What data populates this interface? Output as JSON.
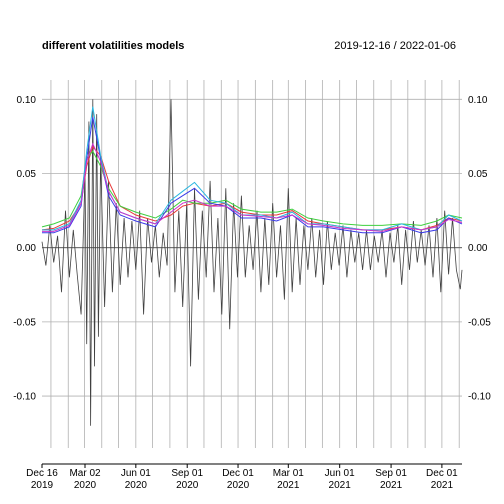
{
  "chart_data": {
    "type": "line",
    "title": "different volatilities models",
    "date_range": "2019-12-16 / 2022-01-06",
    "x_start": "2019-12-16",
    "x_end": "2022-01-06",
    "ylim": [
      -0.135,
      0.113
    ],
    "y_ticks": [
      0.1,
      0.05,
      0.0,
      -0.05,
      -0.1
    ],
    "y_tick_labels": [
      "0.10",
      "0.05",
      "0.00",
      "-0.05",
      "-0.10"
    ],
    "x_ticks": [
      {
        "date": "2019-12-16",
        "label": "Dec 16",
        "year": "2019"
      },
      {
        "date": "2020-03-02",
        "label": "Mar 02",
        "year": "2020"
      },
      {
        "date": "2020-06-01",
        "label": "Jun 01",
        "year": "2020"
      },
      {
        "date": "2020-09-01",
        "label": "Sep 01",
        "year": "2020"
      },
      {
        "date": "2020-12-01",
        "label": "Dec 01",
        "year": "2020"
      },
      {
        "date": "2021-03-01",
        "label": "Mar 01",
        "year": "2021"
      },
      {
        "date": "2021-06-01",
        "label": "Jun 01",
        "year": "2021"
      },
      {
        "date": "2021-09-01",
        "label": "Sep 01",
        "year": "2021"
      },
      {
        "date": "2021-12-01",
        "label": "Dec 01",
        "year": "2021"
      }
    ],
    "grid": true,
    "colors": {
      "returns": "#404040",
      "vol_black": "#000000",
      "vol_red": "#e8393a",
      "vol_green": "#3fcf3f",
      "vol_blue": "#3b3be8",
      "vol_cyan": "#29b6e0",
      "vol_magenta": "#cc33cc"
    },
    "returns": [
      [
        "2019-12-16",
        0.004
      ],
      [
        "2019-12-23",
        -0.012
      ],
      [
        "2019-12-30",
        0.015
      ],
      [
        "2020-01-06",
        -0.01
      ],
      [
        "2020-01-13",
        0.008
      ],
      [
        "2020-01-20",
        -0.03
      ],
      [
        "2020-01-27",
        0.025
      ],
      [
        "2020-02-03",
        -0.02
      ],
      [
        "2020-02-10",
        0.012
      ],
      [
        "2020-02-17",
        -0.018
      ],
      [
        "2020-02-24",
        -0.045
      ],
      [
        "2020-03-02",
        0.05
      ],
      [
        "2020-03-05",
        -0.065
      ],
      [
        "2020-03-09",
        0.085
      ],
      [
        "2020-03-12",
        -0.12
      ],
      [
        "2020-03-16",
        0.1
      ],
      [
        "2020-03-19",
        -0.08
      ],
      [
        "2020-03-23",
        0.09
      ],
      [
        "2020-03-26",
        -0.06
      ],
      [
        "2020-03-30",
        0.06
      ],
      [
        "2020-04-06",
        -0.04
      ],
      [
        "2020-04-13",
        0.045
      ],
      [
        "2020-04-20",
        -0.03
      ],
      [
        "2020-04-27",
        0.03
      ],
      [
        "2020-05-04",
        -0.025
      ],
      [
        "2020-05-11",
        0.02
      ],
      [
        "2020-05-18",
        -0.02
      ],
      [
        "2020-05-25",
        0.018
      ],
      [
        "2020-06-01",
        -0.015
      ],
      [
        "2020-06-08",
        0.025
      ],
      [
        "2020-06-15",
        -0.045
      ],
      [
        "2020-06-22",
        0.02
      ],
      [
        "2020-06-29",
        -0.01
      ],
      [
        "2020-07-06",
        0.015
      ],
      [
        "2020-07-13",
        -0.02
      ],
      [
        "2020-07-20",
        0.01
      ],
      [
        "2020-07-27",
        -0.012
      ],
      [
        "2020-08-03",
        0.1
      ],
      [
        "2020-08-10",
        -0.03
      ],
      [
        "2020-08-17",
        0.025
      ],
      [
        "2020-08-24",
        -0.04
      ],
      [
        "2020-08-31",
        0.03
      ],
      [
        "2020-09-07",
        -0.08
      ],
      [
        "2020-09-14",
        0.04
      ],
      [
        "2020-09-21",
        -0.035
      ],
      [
        "2020-09-28",
        0.025
      ],
      [
        "2020-10-05",
        -0.02
      ],
      [
        "2020-10-12",
        0.045
      ],
      [
        "2020-10-19",
        -0.03
      ],
      [
        "2020-10-26",
        0.02
      ],
      [
        "2020-11-02",
        -0.045
      ],
      [
        "2020-11-09",
        0.04
      ],
      [
        "2020-11-16",
        -0.055
      ],
      [
        "2020-11-23",
        0.03
      ],
      [
        "2020-11-30",
        -0.02
      ],
      [
        "2020-12-07",
        0.035
      ],
      [
        "2020-12-14",
        -0.02
      ],
      [
        "2020-12-21",
        0.015
      ],
      [
        "2020-12-28",
        -0.015
      ],
      [
        "2021-01-04",
        0.025
      ],
      [
        "2021-01-11",
        -0.03
      ],
      [
        "2021-01-18",
        0.02
      ],
      [
        "2021-01-25",
        -0.025
      ],
      [
        "2021-02-01",
        0.03
      ],
      [
        "2021-02-08",
        -0.02
      ],
      [
        "2021-02-15",
        0.015
      ],
      [
        "2021-02-22",
        -0.035
      ],
      [
        "2021-03-01",
        0.04
      ],
      [
        "2021-03-08",
        -0.03
      ],
      [
        "2021-03-15",
        0.02
      ],
      [
        "2021-03-22",
        -0.025
      ],
      [
        "2021-03-29",
        0.015
      ],
      [
        "2021-04-05",
        -0.015
      ],
      [
        "2021-04-12",
        0.02
      ],
      [
        "2021-04-19",
        -0.02
      ],
      [
        "2021-04-26",
        0.012
      ],
      [
        "2021-05-03",
        -0.025
      ],
      [
        "2021-05-10",
        0.018
      ],
      [
        "2021-05-17",
        -0.015
      ],
      [
        "2021-05-24",
        0.01
      ],
      [
        "2021-05-31",
        -0.012
      ],
      [
        "2021-06-07",
        0.015
      ],
      [
        "2021-06-14",
        -0.02
      ],
      [
        "2021-06-21",
        0.012
      ],
      [
        "2021-06-28",
        -0.01
      ],
      [
        "2021-07-05",
        0.01
      ],
      [
        "2021-07-12",
        -0.015
      ],
      [
        "2021-07-19",
        0.012
      ],
      [
        "2021-07-26",
        -0.015
      ],
      [
        "2021-08-02",
        0.008
      ],
      [
        "2021-08-09",
        -0.01
      ],
      [
        "2021-08-16",
        0.012
      ],
      [
        "2021-08-23",
        -0.02
      ],
      [
        "2021-08-30",
        0.01
      ],
      [
        "2021-09-06",
        -0.01
      ],
      [
        "2021-09-13",
        0.015
      ],
      [
        "2021-09-20",
        -0.025
      ],
      [
        "2021-09-27",
        0.012
      ],
      [
        "2021-10-04",
        -0.015
      ],
      [
        "2021-10-11",
        0.018
      ],
      [
        "2021-10-18",
        -0.01
      ],
      [
        "2021-10-25",
        0.012
      ],
      [
        "2021-11-01",
        -0.012
      ],
      [
        "2021-11-08",
        0.015
      ],
      [
        "2021-11-15",
        -0.02
      ],
      [
        "2021-11-22",
        0.02
      ],
      [
        "2021-11-29",
        -0.03
      ],
      [
        "2021-12-06",
        0.025
      ],
      [
        "2021-12-13",
        -0.018
      ],
      [
        "2021-12-20",
        0.02
      ],
      [
        "2021-12-27",
        -0.015
      ],
      [
        "2022-01-03",
        -0.028
      ],
      [
        "2022-01-06",
        -0.015
      ]
    ],
    "series": [
      {
        "color": "#e8393a",
        "points": [
          [
            "2019-12-16",
            0.012
          ],
          [
            "2020-01-06",
            0.013
          ],
          [
            "2020-02-03",
            0.018
          ],
          [
            "2020-02-24",
            0.03
          ],
          [
            "2020-03-05",
            0.055
          ],
          [
            "2020-03-16",
            0.068
          ],
          [
            "2020-03-30",
            0.062
          ],
          [
            "2020-04-13",
            0.045
          ],
          [
            "2020-05-04",
            0.028
          ],
          [
            "2020-06-01",
            0.022
          ],
          [
            "2020-07-06",
            0.018
          ],
          [
            "2020-08-03",
            0.022
          ],
          [
            "2020-08-24",
            0.028
          ],
          [
            "2020-09-14",
            0.03
          ],
          [
            "2020-10-12",
            0.028
          ],
          [
            "2020-11-09",
            0.03
          ],
          [
            "2020-12-07",
            0.024
          ],
          [
            "2021-01-11",
            0.022
          ],
          [
            "2021-02-08",
            0.022
          ],
          [
            "2021-03-08",
            0.025
          ],
          [
            "2021-04-05",
            0.018
          ],
          [
            "2021-05-03",
            0.016
          ],
          [
            "2021-06-07",
            0.014
          ],
          [
            "2021-07-12",
            0.012
          ],
          [
            "2021-08-16",
            0.012
          ],
          [
            "2021-09-20",
            0.014
          ],
          [
            "2021-10-25",
            0.012
          ],
          [
            "2021-11-22",
            0.015
          ],
          [
            "2021-12-13",
            0.02
          ],
          [
            "2022-01-06",
            0.018
          ]
        ]
      },
      {
        "color": "#3fcf3f",
        "points": [
          [
            "2019-12-16",
            0.014
          ],
          [
            "2020-01-06",
            0.016
          ],
          [
            "2020-02-03",
            0.02
          ],
          [
            "2020-02-24",
            0.035
          ],
          [
            "2020-03-05",
            0.06
          ],
          [
            "2020-03-16",
            0.065
          ],
          [
            "2020-03-30",
            0.055
          ],
          [
            "2020-04-13",
            0.04
          ],
          [
            "2020-05-04",
            0.028
          ],
          [
            "2020-06-01",
            0.024
          ],
          [
            "2020-07-06",
            0.02
          ],
          [
            "2020-08-03",
            0.026
          ],
          [
            "2020-08-24",
            0.032
          ],
          [
            "2020-09-14",
            0.03
          ],
          [
            "2020-10-12",
            0.03
          ],
          [
            "2020-11-09",
            0.032
          ],
          [
            "2020-12-07",
            0.026
          ],
          [
            "2021-01-11",
            0.024
          ],
          [
            "2021-02-08",
            0.024
          ],
          [
            "2021-03-08",
            0.026
          ],
          [
            "2021-04-05",
            0.02
          ],
          [
            "2021-05-03",
            0.018
          ],
          [
            "2021-06-07",
            0.016
          ],
          [
            "2021-07-12",
            0.015
          ],
          [
            "2021-08-16",
            0.015
          ],
          [
            "2021-09-20",
            0.016
          ],
          [
            "2021-10-25",
            0.015
          ],
          [
            "2021-11-22",
            0.018
          ],
          [
            "2021-12-13",
            0.022
          ],
          [
            "2022-01-06",
            0.02
          ]
        ]
      },
      {
        "color": "#3b3be8",
        "points": [
          [
            "2019-12-16",
            0.01
          ],
          [
            "2020-01-06",
            0.01
          ],
          [
            "2020-02-03",
            0.014
          ],
          [
            "2020-02-24",
            0.028
          ],
          [
            "2020-03-05",
            0.06
          ],
          [
            "2020-03-16",
            0.088
          ],
          [
            "2020-03-30",
            0.06
          ],
          [
            "2020-04-13",
            0.035
          ],
          [
            "2020-05-04",
            0.022
          ],
          [
            "2020-06-01",
            0.018
          ],
          [
            "2020-07-06",
            0.014
          ],
          [
            "2020-08-03",
            0.03
          ],
          [
            "2020-08-24",
            0.035
          ],
          [
            "2020-09-14",
            0.04
          ],
          [
            "2020-10-12",
            0.03
          ],
          [
            "2020-11-09",
            0.028
          ],
          [
            "2020-12-07",
            0.02
          ],
          [
            "2021-01-11",
            0.02
          ],
          [
            "2021-02-08",
            0.018
          ],
          [
            "2021-03-08",
            0.022
          ],
          [
            "2021-04-05",
            0.014
          ],
          [
            "2021-05-03",
            0.014
          ],
          [
            "2021-06-07",
            0.012
          ],
          [
            "2021-07-12",
            0.01
          ],
          [
            "2021-08-16",
            0.01
          ],
          [
            "2021-09-20",
            0.014
          ],
          [
            "2021-10-25",
            0.01
          ],
          [
            "2021-11-22",
            0.012
          ],
          [
            "2021-12-13",
            0.02
          ],
          [
            "2022-01-06",
            0.016
          ]
        ]
      },
      {
        "color": "#29b6e0",
        "points": [
          [
            "2019-12-16",
            0.012
          ],
          [
            "2020-01-06",
            0.012
          ],
          [
            "2020-02-03",
            0.016
          ],
          [
            "2020-02-24",
            0.032
          ],
          [
            "2020-03-05",
            0.065
          ],
          [
            "2020-03-16",
            0.095
          ],
          [
            "2020-03-30",
            0.062
          ],
          [
            "2020-04-13",
            0.038
          ],
          [
            "2020-05-04",
            0.024
          ],
          [
            "2020-06-01",
            0.02
          ],
          [
            "2020-07-06",
            0.016
          ],
          [
            "2020-08-03",
            0.032
          ],
          [
            "2020-08-24",
            0.038
          ],
          [
            "2020-09-14",
            0.044
          ],
          [
            "2020-10-12",
            0.032
          ],
          [
            "2020-11-09",
            0.03
          ],
          [
            "2020-12-07",
            0.022
          ],
          [
            "2021-01-11",
            0.022
          ],
          [
            "2021-02-08",
            0.02
          ],
          [
            "2021-03-08",
            0.024
          ],
          [
            "2021-04-05",
            0.016
          ],
          [
            "2021-05-03",
            0.016
          ],
          [
            "2021-06-07",
            0.014
          ],
          [
            "2021-07-12",
            0.012
          ],
          [
            "2021-08-16",
            0.012
          ],
          [
            "2021-09-20",
            0.016
          ],
          [
            "2021-10-25",
            0.012
          ],
          [
            "2021-11-22",
            0.014
          ],
          [
            "2021-12-13",
            0.022
          ],
          [
            "2022-01-06",
            0.018
          ]
        ]
      },
      {
        "color": "#cc33cc",
        "points": [
          [
            "2019-12-16",
            0.011
          ],
          [
            "2020-01-06",
            0.011
          ],
          [
            "2020-02-03",
            0.015
          ],
          [
            "2020-02-24",
            0.03
          ],
          [
            "2020-03-05",
            0.058
          ],
          [
            "2020-03-16",
            0.07
          ],
          [
            "2020-03-30",
            0.058
          ],
          [
            "2020-04-13",
            0.038
          ],
          [
            "2020-05-04",
            0.024
          ],
          [
            "2020-06-01",
            0.02
          ],
          [
            "2020-07-06",
            0.016
          ],
          [
            "2020-08-03",
            0.024
          ],
          [
            "2020-08-24",
            0.03
          ],
          [
            "2020-09-14",
            0.032
          ],
          [
            "2020-10-12",
            0.028
          ],
          [
            "2020-11-09",
            0.028
          ],
          [
            "2020-12-07",
            0.022
          ],
          [
            "2021-01-11",
            0.021
          ],
          [
            "2021-02-08",
            0.02
          ],
          [
            "2021-03-08",
            0.022
          ],
          [
            "2021-04-05",
            0.016
          ],
          [
            "2021-05-03",
            0.015
          ],
          [
            "2021-06-07",
            0.013
          ],
          [
            "2021-07-12",
            0.012
          ],
          [
            "2021-08-16",
            0.011
          ],
          [
            "2021-09-20",
            0.014
          ],
          [
            "2021-10-25",
            0.012
          ],
          [
            "2021-11-22",
            0.014
          ],
          [
            "2021-12-13",
            0.019
          ],
          [
            "2022-01-06",
            0.017
          ]
        ]
      }
    ]
  }
}
